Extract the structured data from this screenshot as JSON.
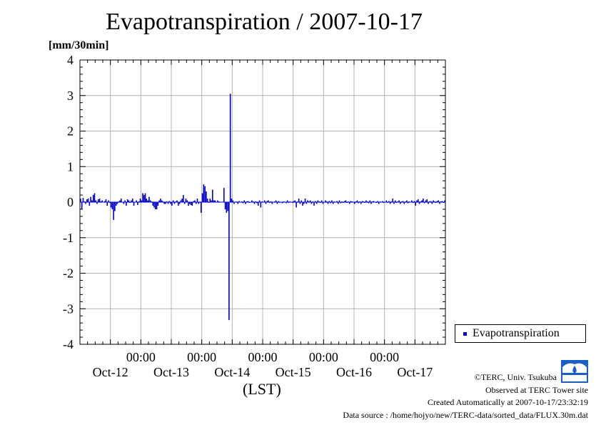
{
  "title": "Evapotranspiration / 2007-10-17",
  "unit_label": "[mm/30min]",
  "xlabel": "(LST)",
  "legend": {
    "label": "Evapotranspiration"
  },
  "credits": {
    "copyright": "©TERC, Univ. Tsukuba",
    "observed": "Observed at TERC Tower site",
    "created": "Created Automatically at 2007-10-17/23:32:19",
    "source": "Data source : /home/hojyo/new/TERC-data/sorted_data/FLUX.30m.dat"
  },
  "logo": {
    "text": "TERC"
  },
  "colors": {
    "series": "#0000cc",
    "grid": "#b4b4b4"
  },
  "chart_data": {
    "type": "bar",
    "title": "Evapotranspiration / 2007-10-17",
    "ylabel": "[mm/30min]",
    "xlabel": "(LST)",
    "ylim": [
      -4,
      4
    ],
    "yticks": [
      "4",
      "3",
      "2",
      "1",
      "0",
      "-1",
      "-2",
      "-3",
      "-4"
    ],
    "xlim_days": [
      0,
      6
    ],
    "xtick_time_labels": [
      "00:00",
      "00:00",
      "00:00",
      "00:00",
      "00:00"
    ],
    "xtick_date_labels": [
      "Oct-12",
      "Oct-13",
      "Oct-14",
      "Oct-15",
      "Oct-16",
      "Oct-17"
    ],
    "grid": true,
    "legend_position": "right",
    "series": [
      {
        "name": "Evapotranspiration",
        "values": [
          0.1,
          -0.2,
          0.12,
          0.02,
          -0.05,
          0.08,
          0.1,
          -0.1,
          0.15,
          0.05,
          0.2,
          0.25,
          0.05,
          -0.05,
          0.08,
          0.1,
          0.02,
          0.05,
          0.0,
          0.03,
          0.08,
          -0.1,
          0.05,
          -0.02,
          -0.15,
          -0.2,
          -0.5,
          -0.25,
          -0.1,
          -0.05,
          0.02,
          0.05,
          0.1,
          0.0,
          -0.05,
          0.05,
          -0.1,
          0.08,
          0.05,
          -0.02,
          0.05,
          0.1,
          -0.1,
          0.0,
          0.05,
          -0.08,
          0.02,
          0.1,
          0.05,
          0.25,
          0.2,
          0.25,
          0.1,
          0.05,
          0.15,
          0.05,
          0.02,
          -0.1,
          -0.15,
          -0.2,
          -0.2,
          -0.1,
          0.05,
          0.1,
          0.05,
          0.02,
          -0.05,
          -0.05,
          0.02,
          -0.05,
          0.03,
          -0.05,
          -0.1,
          0.05,
          -0.05,
          0.02,
          0.05,
          -0.1,
          -0.05,
          0.05,
          0.1,
          0.2,
          -0.05,
          0.1,
          0.05,
          -0.1,
          -0.05,
          -0.08,
          -0.1,
          0.03,
          0.05,
          -0.05,
          0.1,
          -0.05,
          -0.02,
          -0.3,
          0.25,
          0.5,
          0.45,
          0.3,
          0.1,
          -0.02,
          0.1,
          0.05,
          0.35,
          0.05,
          0.05,
          0.0,
          0.05,
          0.02,
          0.0,
          0.0,
          0.0,
          0.4,
          -0.2,
          -0.3,
          -0.25,
          -3.32,
          3.05,
          0.1,
          0.05,
          -0.05,
          0.0,
          0.02,
          -0.05,
          0.03,
          0.0,
          0.02,
          -0.03,
          0.05,
          -0.05,
          0.02,
          0.03,
          -0.02,
          0.0,
          0.05,
          0.02,
          -0.05,
          0.02,
          -0.03,
          -0.1,
          0.05,
          -0.15,
          0.02,
          0.0,
          0.05,
          -0.05,
          0.03,
          0.05,
          -0.02,
          0.02,
          -0.05,
          0.0,
          0.02,
          0.05,
          -0.05,
          0.03,
          -0.02,
          0.0,
          -0.03,
          0.02,
          0.0,
          -0.03,
          0.05,
          -0.02,
          0.02,
          0.0,
          -0.02,
          0.03,
          0.05,
          -0.15,
          0.02,
          0.1,
          -0.05,
          0.05,
          -0.1,
          -0.05,
          0.1,
          -0.05,
          0.05,
          0.02,
          0.05,
          -0.05,
          0.02,
          -0.1,
          0.03,
          -0.05,
          0.05,
          0.02,
          -0.02,
          0.05,
          -0.05,
          0.0,
          0.05,
          0.02,
          -0.05,
          0.03,
          -0.03,
          0.05,
          -0.05,
          0.02,
          0.0,
          0.03,
          -0.05,
          0.05,
          -0.03,
          0.02,
          -0.02,
          0.03,
          0.05,
          -0.02,
          0.02,
          -0.05,
          0.03,
          0.02,
          0.0,
          -0.05,
          0.02,
          0.05,
          -0.03,
          0.02,
          -0.05,
          0.03,
          0.02,
          -0.02,
          0.05,
          0.02,
          -0.03,
          0.05,
          -0.05,
          0.02,
          0.03,
          0.0,
          -0.02,
          0.03,
          -0.05,
          0.02,
          0.0,
          0.03,
          -0.02,
          0.0,
          0.05,
          -0.02,
          0.03,
          -0.05,
          0.02,
          0.1,
          -0.05,
          0.05,
          -0.02,
          0.02,
          0.05,
          -0.05,
          0.02,
          0.03,
          -0.05,
          0.02,
          0.05,
          -0.03,
          0.02,
          0.0,
          0.05,
          -0.02,
          0.03,
          -0.1,
          0.05,
          0.08,
          -0.05,
          0.02,
          0.05,
          0.1,
          -0.03,
          0.05,
          0.08,
          -0.05,
          0.02,
          0.03,
          -0.05,
          0.05,
          0.02,
          -0.02,
          0.03,
          0.05,
          -0.05,
          0.02,
          0.03,
          -0.02,
          0.05
        ]
      }
    ]
  }
}
